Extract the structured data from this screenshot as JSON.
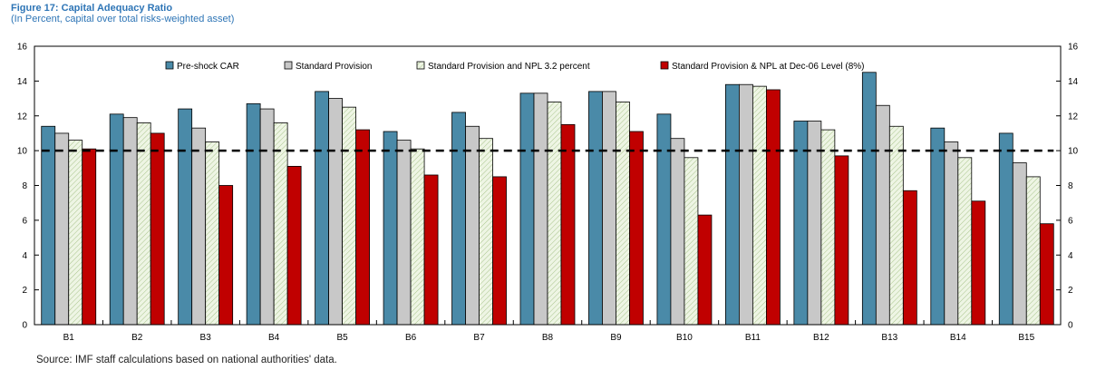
{
  "figure": {
    "title": "Figure 17: Capital Adequacy Ratio",
    "subtitle": "(In Percent, capital over total risks-weighted asset)",
    "source": "Source: IMF staff calculations based on national authorities' data."
  },
  "chart_data": {
    "type": "bar",
    "title": "Figure 17: Capital Adequacy Ratio",
    "subtitle": "(In Percent, capital over total risks-weighted asset)",
    "xlabel": "",
    "ylabel": "",
    "ylim": [
      0,
      16
    ],
    "yticks": [
      0,
      2,
      4,
      6,
      8,
      10,
      12,
      14,
      16
    ],
    "grid": false,
    "legend_position": "top",
    "categories": [
      "B1",
      "B2",
      "B3",
      "B4",
      "B5",
      "B6",
      "B7",
      "B8",
      "B9",
      "B10",
      "B11",
      "B12",
      "B13",
      "B14",
      "B15"
    ],
    "series": [
      {
        "name": "Pre-shock CAR",
        "color": "#4a8aa8",
        "pattern": "solid",
        "values": [
          11.4,
          12.1,
          12.4,
          12.7,
          13.4,
          11.1,
          12.2,
          13.3,
          13.4,
          12.1,
          13.8,
          11.7,
          14.5,
          11.3,
          11.0
        ]
      },
      {
        "name": "Standard Provision",
        "color": "#c8c8c8",
        "pattern": "solid",
        "values": [
          11.0,
          11.9,
          11.3,
          12.4,
          13.0,
          10.6,
          11.4,
          13.3,
          13.4,
          10.7,
          13.8,
          11.7,
          12.6,
          10.5,
          9.3
        ]
      },
      {
        "name": "Standard Provision and NPL 3.2 percent",
        "color": "#e8f0dc",
        "pattern": "hatch",
        "values": [
          10.6,
          11.6,
          10.5,
          11.6,
          12.5,
          10.1,
          10.7,
          12.8,
          12.8,
          9.6,
          13.7,
          11.2,
          11.4,
          9.6,
          8.5
        ]
      },
      {
        "name": "Standard Provision & NPL at Dec-06 Level (8%)",
        "color": "#c00000",
        "pattern": "solid",
        "values": [
          10.1,
          11.0,
          8.0,
          9.1,
          11.2,
          8.6,
          8.5,
          11.5,
          11.1,
          6.3,
          13.5,
          9.7,
          7.7,
          7.1,
          5.8
        ]
      }
    ],
    "reference_line": {
      "value": 10,
      "style": "dashed",
      "color": "#000000"
    }
  }
}
